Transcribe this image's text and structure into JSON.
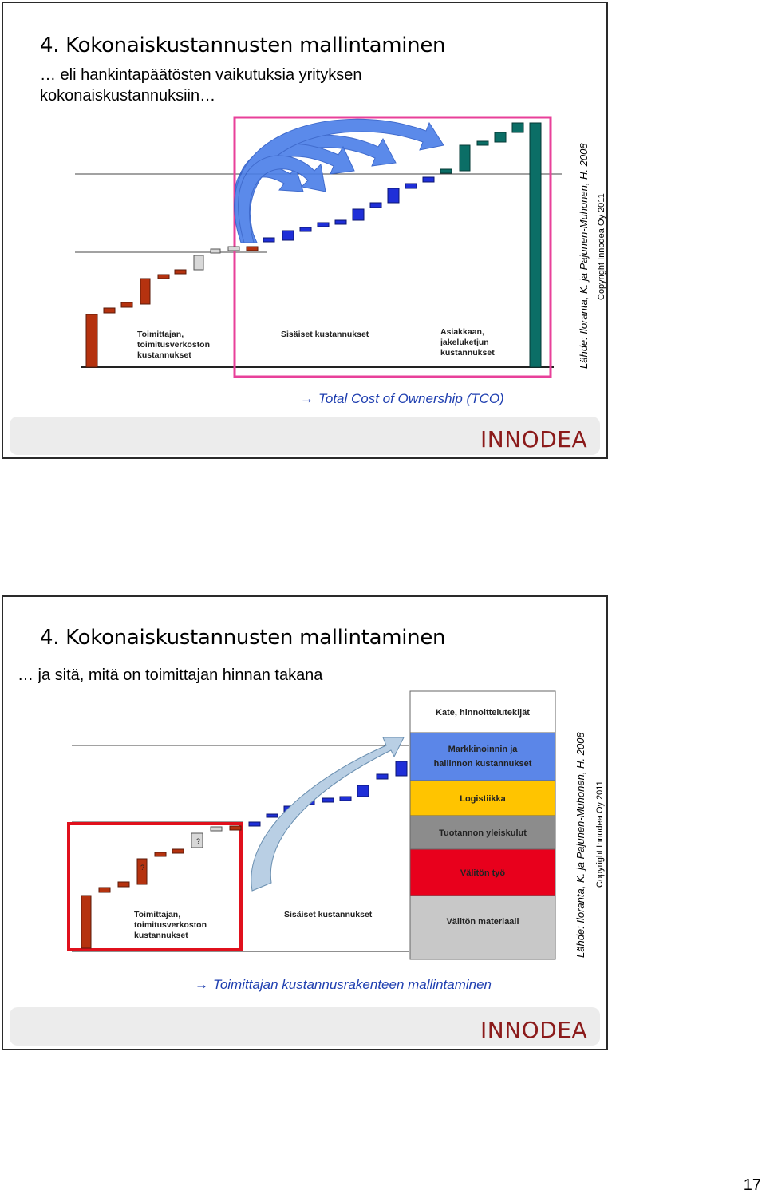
{
  "slide1": {
    "title": "4. Kokonaiskustannusten mallintaminen",
    "subtitle_line1": "… eli hankintapäätösten vaikutuksia  yrityksen",
    "subtitle_line2": "kokonaiskustannuksiin…",
    "chart_label_supplier": [
      "Toimittajan,",
      "toimitusverkoston",
      "kustannukset"
    ],
    "chart_label_internal": "Sisäiset kustannukset",
    "chart_label_customer": [
      "Asiakkaan,",
      "jakeluketjun",
      "kustannukset"
    ],
    "tco_text": "Total Cost of Ownership (TCO)",
    "source": "Lähde: Iloranta, K. ja Pajunen-Muhonen, H. 2008",
    "copyright": "Copyright Innodea Oy 2011",
    "logo": "INNODEA",
    "colors": {
      "highlight_box": "#e8409a",
      "tco_text": "#1f3fb0",
      "arrows": "#4a7ee8"
    }
  },
  "slide2": {
    "title": "4. Kokonaiskustannusten mallintaminen",
    "subtitle": "… ja sitä, mitä on toimittajan hinnan takana",
    "chart_label_supplier": [
      "Toimittajan,",
      "toimitusverkoston",
      "kustannukset"
    ],
    "chart_label_internal": "Sisäiset kustannukset",
    "question_mark": "?",
    "stack_segments": [
      {
        "label": "Kate, hinnoittelutekijät",
        "color": "#ffffff"
      },
      {
        "label": "Markkinoinnin ja hallinnon kustannukset",
        "line1": "Markkinoinnin ja",
        "line2": "hallinnon kustannukset",
        "color": "#5b86e8"
      },
      {
        "label": "Logistiikka",
        "color": "#ffc400"
      },
      {
        "label": "Tuotannon yleiskulut",
        "color": "#8c8c8c"
      },
      {
        "label": "Välitön työ",
        "color": "#e8001c"
      },
      {
        "label": "Välitön materiaali",
        "color": "#c8c8c8"
      }
    ],
    "takeaway": "Toimittajan kustannusrakenteen mallintaminen",
    "source": "Lähde: Iloranta, K. ja Pajunen-Muhonen, H. 2008",
    "copyright": "Copyright Innodea Oy 2011",
    "logo": "INNODEA",
    "colors": {
      "highlight_box": "#e0101c"
    }
  },
  "page_number": "17"
}
